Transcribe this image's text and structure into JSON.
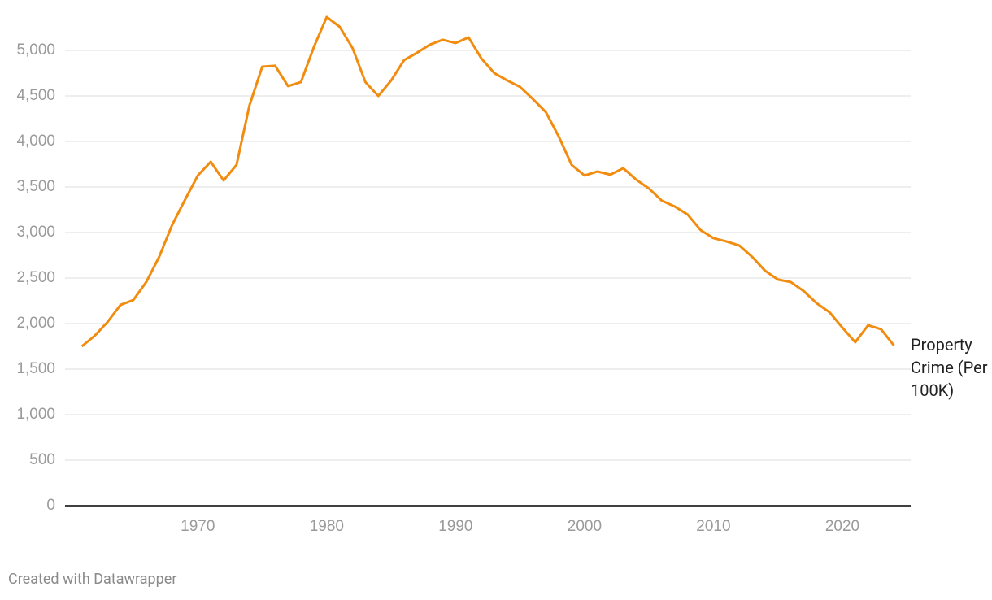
{
  "chart_data": {
    "type": "line",
    "x": [
      1961,
      1962,
      1963,
      1964,
      1965,
      1966,
      1967,
      1968,
      1969,
      1970,
      1971,
      1972,
      1973,
      1974,
      1975,
      1976,
      1977,
      1978,
      1979,
      1980,
      1981,
      1982,
      1983,
      1984,
      1985,
      1986,
      1987,
      1988,
      1989,
      1990,
      1991,
      1992,
      1993,
      1994,
      1995,
      1996,
      1997,
      1998,
      1999,
      2000,
      2001,
      2002,
      2003,
      2004,
      2005,
      2006,
      2007,
      2008,
      2009,
      2010,
      2011,
      2012,
      2013,
      2014,
      2015,
      2016,
      2017,
      2018,
      2019,
      2020,
      2021,
      2022,
      2023,
      2024
    ],
    "series": [
      {
        "name": "Property Crime (Per 100K)",
        "color": "#f28c0f",
        "values": [
          1750,
          1866,
          2018,
          2205,
          2259,
          2456,
          2733,
          3081,
          3358,
          3626,
          3777,
          3572,
          3742,
          4394,
          4822,
          4831,
          4608,
          4652,
          5036,
          5367,
          5260,
          5027,
          4652,
          4500,
          4670,
          4893,
          4974,
          5063,
          5117,
          5081,
          5143,
          4911,
          4751,
          4670,
          4599,
          4465,
          4322,
          4054,
          3742,
          3626,
          3670,
          3635,
          3706,
          3581,
          3483,
          3349,
          3286,
          3197,
          3027,
          2938,
          2902,
          2858,
          2733,
          2581,
          2483,
          2456,
          2357,
          2224,
          2125,
          1956,
          1795,
          1982,
          1938,
          1759
        ]
      }
    ],
    "xlim": [
      1959.7,
      2025.3
    ],
    "xticks": [
      1970,
      1980,
      1990,
      2000,
      2010,
      2020
    ],
    "ylim": [
      0,
      5500
    ],
    "yticks": [
      0,
      500,
      {
        "value": 1000,
        "label": "1,000"
      },
      {
        "value": 1500,
        "label": "1,500"
      },
      {
        "value": 2000,
        "label": "2,000"
      },
      {
        "value": 2500,
        "label": "2,500"
      },
      {
        "value": 3000,
        "label": "3,000"
      },
      {
        "value": 3500,
        "label": "3,500"
      },
      {
        "value": 4000,
        "label": "4,000"
      },
      {
        "value": 4500,
        "label": "4,500"
      },
      {
        "value": 5000,
        "label": "5,000"
      }
    ],
    "grid": true,
    "credit": "Created with Datawrapper"
  }
}
